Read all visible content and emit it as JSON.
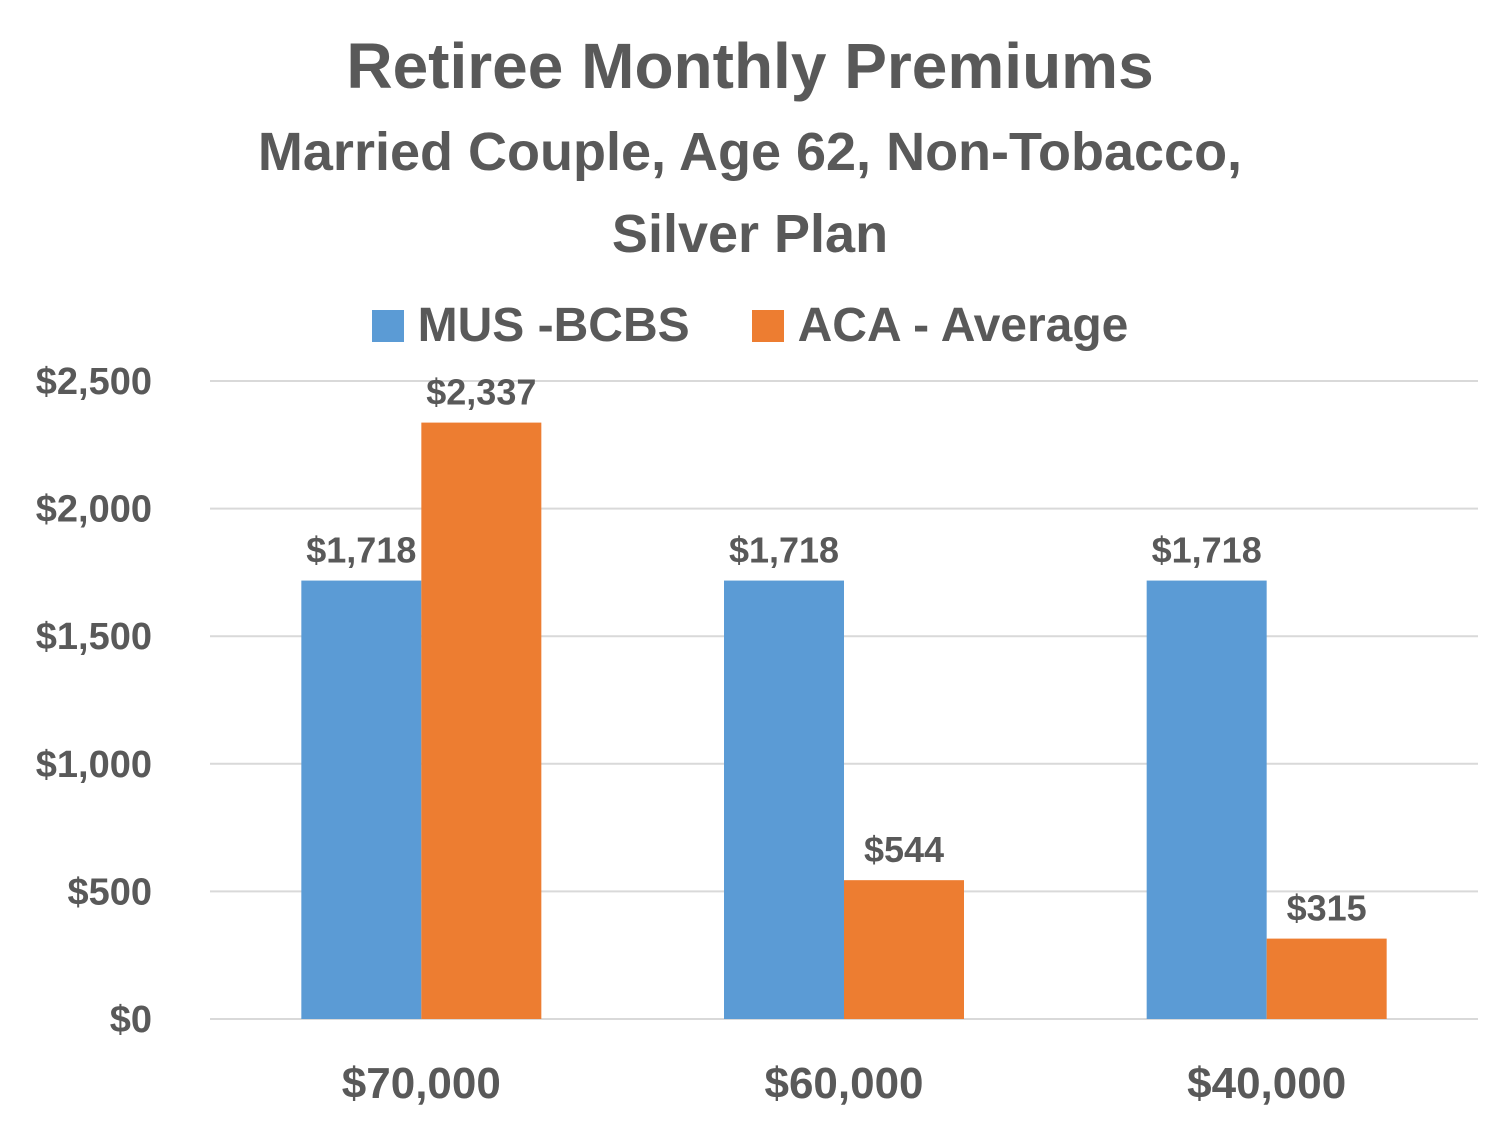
{
  "chart_data": {
    "type": "bar",
    "title": "Retiree Monthly Premiums",
    "subtitle_lines": [
      "Married Couple, Age 62, Non-Tobacco,",
      "Silver Plan"
    ],
    "categories": [
      "$70,000",
      "$60,000",
      "$40,000"
    ],
    "series": [
      {
        "name": "MUS -BCBS",
        "color": "#5B9BD5",
        "values": [
          1718,
          1718,
          1718
        ],
        "labels": [
          "$1,718",
          "$1,718",
          "$1,718"
        ]
      },
      {
        "name": "ACA - Average",
        "color": "#ED7D31",
        "values": [
          2337,
          544,
          315
        ],
        "labels": [
          "$2,337",
          "$544",
          "$315"
        ]
      }
    ],
    "y_ticks": [
      0,
      500,
      1000,
      1500,
      2000,
      2500
    ],
    "y_tick_labels": [
      "$0",
      "$500",
      "$1,000",
      "$1,500",
      "$2,000",
      "$2,500"
    ],
    "ylim": [
      0,
      2500
    ],
    "grid": true,
    "legend_position": "top"
  }
}
